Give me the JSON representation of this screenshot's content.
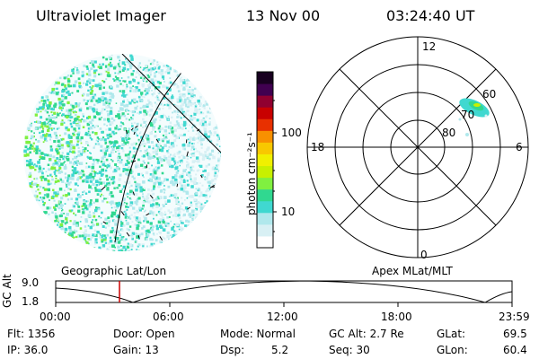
{
  "header": {
    "instrument": "Ultraviolet Imager",
    "date": "13 Nov 00",
    "time": "03:24:40 UT"
  },
  "colorbar": {
    "unit_label": "photon cm⁻²s⁻¹",
    "tick_labels": [
      "100",
      "10"
    ],
    "palette": [
      "#ffffff",
      "#d8f0f4",
      "#b0e8ec",
      "#40d8d0",
      "#30d890",
      "#80f040",
      "#c8f000",
      "#f0f000",
      "#f8c800",
      "#f89000",
      "#e83000",
      "#c80000",
      "#900030",
      "#400050",
      "#180020"
    ]
  },
  "polar_plot": {
    "clock_labels": {
      "top": "12",
      "left": "18",
      "right": "6",
      "bottom": "0"
    },
    "lat_labels": [
      "60",
      "70",
      "80"
    ]
  },
  "panel_labels": {
    "left": "Geographic Lat/Lon",
    "right": "Apex MLat/MLT"
  },
  "altitude_strip": {
    "ylabel": "GC Alt",
    "y_ticks": [
      "9.0",
      "1.8"
    ],
    "x_ticks": [
      "00:00",
      "06:00",
      "12:00",
      "18:00",
      "23:59"
    ],
    "marker_color": "#cc0000"
  },
  "info": {
    "row1": [
      "Flt: 1356",
      "Door: Open",
      "Mode: Normal",
      "GC Alt: 2.7 Re",
      "GLat:",
      "69.5"
    ],
    "row2": [
      "IP: 36.0",
      "Gain: 13",
      "Dsp:",
      "5.2",
      "Seq: 30",
      "GLon:",
      "60.4"
    ]
  }
}
